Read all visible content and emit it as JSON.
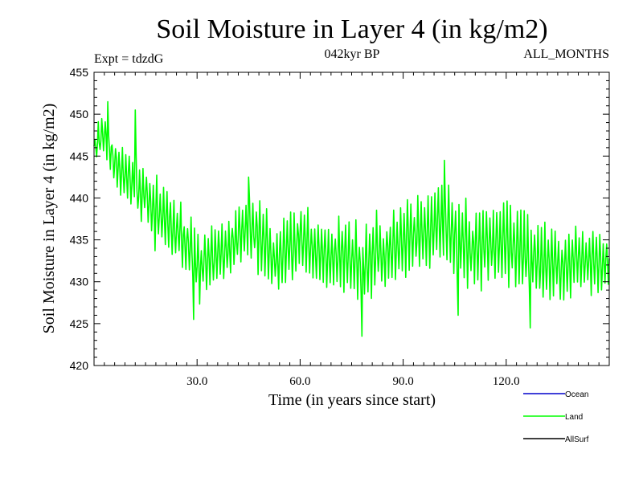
{
  "chart_data": {
    "type": "line",
    "title": "Soil Moisture in Layer 4 (in kg/m2)",
    "subtitle_left": "Expt = tdzdG",
    "subtitle_center": "042kyr BP",
    "subtitle_right": "ALL_MONTHS",
    "xlabel": "Time (in years since start)",
    "ylabel": "Soil Moisture in Layer 4 (in kg/m2)",
    "xlim": [
      0,
      150
    ],
    "ylim": [
      420,
      455
    ],
    "xticks": [
      30,
      60,
      90,
      120
    ],
    "xtick_labels": [
      "30.0",
      "60.0",
      "90.0",
      "120.0"
    ],
    "yticks": [
      420,
      425,
      430,
      435,
      440,
      445,
      450,
      455
    ],
    "ytick_labels": [
      "420",
      "425",
      "430",
      "435",
      "440",
      "445",
      "450",
      "455"
    ],
    "grid": false,
    "legend_position": "bottom-right, outside plot",
    "series": [
      {
        "name": "Ocean",
        "color": "#0000cc",
        "values": []
      },
      {
        "name": "Land",
        "color": "#00ff00",
        "x": [
          0,
          2,
          4,
          6,
          8,
          10,
          12,
          14,
          16,
          18,
          20,
          22,
          24,
          26,
          28,
          30,
          32,
          34,
          36,
          38,
          40,
          42,
          44,
          46,
          48,
          50,
          52,
          54,
          56,
          58,
          60,
          62,
          64,
          66,
          68,
          70,
          72,
          74,
          76,
          78,
          80,
          82,
          84,
          86,
          88,
          90,
          92,
          94,
          96,
          98,
          100,
          102,
          104,
          106,
          108,
          110,
          112,
          114,
          116,
          118,
          120,
          122,
          124,
          126,
          128,
          130,
          132,
          134,
          136,
          138,
          140,
          142,
          144,
          146,
          148,
          150
        ],
        "y_high": [
          448,
          450,
          449,
          447,
          446,
          446,
          445,
          444,
          443,
          442,
          442,
          441,
          440,
          439,
          438,
          437,
          436,
          436,
          437,
          437,
          438,
          439,
          440,
          440,
          441,
          439,
          437,
          437,
          438,
          438,
          440,
          439,
          438,
          438,
          437,
          437,
          438,
          437,
          437,
          436,
          437,
          438,
          437,
          438,
          439,
          439,
          440,
          440,
          441,
          441,
          443,
          442,
          442,
          441,
          440,
          439,
          439,
          439,
          439,
          440,
          440,
          439,
          439,
          438,
          438,
          437,
          437,
          436,
          436,
          436,
          437,
          437,
          436,
          437,
          436,
          435
        ],
        "y_low": [
          443,
          445,
          444,
          442,
          440,
          439,
          438,
          437,
          436,
          434,
          434,
          433,
          432,
          431,
          430,
          428,
          428,
          429,
          430,
          430,
          431,
          432,
          433,
          432,
          431,
          430,
          429,
          429,
          430,
          430,
          431,
          430,
          430,
          429,
          429,
          429,
          429,
          429,
          428,
          427,
          428,
          429,
          429,
          430,
          430,
          430,
          431,
          431,
          431,
          431,
          432,
          432,
          430,
          429,
          429,
          429,
          429,
          430,
          430,
          430,
          430,
          429,
          429,
          428,
          428,
          427,
          427,
          428,
          428,
          428,
          429,
          429,
          428,
          429,
          428,
          429
        ],
        "y_extremes": [
          {
            "x": 4,
            "y": 451.5
          },
          {
            "x": 12,
            "y": 450.5
          },
          {
            "x": 29,
            "y": 425.5
          },
          {
            "x": 45,
            "y": 442.5
          },
          {
            "x": 78,
            "y": 423.5
          },
          {
            "x": 102,
            "y": 444.5
          },
          {
            "x": 106,
            "y": 426
          },
          {
            "x": 127,
            "y": 424.5
          }
        ]
      },
      {
        "name": "AllSurf",
        "color": "#000000",
        "values": []
      }
    ]
  }
}
